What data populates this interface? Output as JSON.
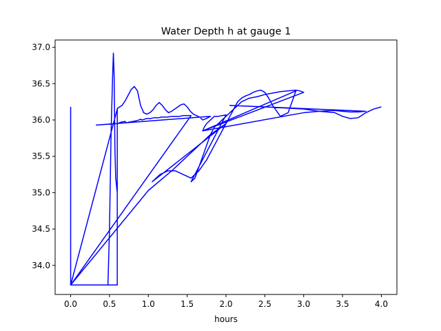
{
  "chart_data": {
    "type": "line",
    "title": "Water Depth h at gauge 1",
    "xlabel": "hours",
    "ylabel": "",
    "xlim": [
      -0.2,
      4.2
    ],
    "ylim": [
      33.6,
      37.1
    ],
    "xticks": [
      "0.0",
      "0.5",
      "1.0",
      "1.5",
      "2.0",
      "2.5",
      "3.0",
      "3.5",
      "4.0"
    ],
    "yticks": [
      "34.0",
      "34.5",
      "35.0",
      "35.5",
      "36.0",
      "36.5",
      "37.0"
    ],
    "grid": false,
    "legend": "none",
    "series": [
      {
        "color": "#0000ff",
        "x": [
          0.0,
          0.0,
          0.05,
          0.12,
          0.2,
          0.28,
          0.35,
          0.42,
          0.48,
          0.5,
          0.52,
          0.54,
          0.55,
          0.56,
          0.57,
          0.58,
          0.6,
          0.6,
          0.0,
          0.0,
          0.6,
          0.6,
          0.6,
          0.62,
          0.66,
          0.7,
          0.74,
          0.78,
          0.82,
          0.86,
          0.9,
          0.94,
          0.98,
          1.02,
          1.06,
          1.1,
          1.14,
          1.18,
          1.22,
          1.26,
          1.3,
          1.34,
          1.38,
          1.42,
          1.46,
          1.5,
          1.54,
          1.58,
          1.62,
          1.66,
          1.7,
          1.75,
          1.8,
          0.33,
          0.6,
          0.65,
          0.7,
          0.72,
          0.75,
          0.8,
          0.85,
          0.88,
          0.9,
          0.92,
          0.95,
          0.98,
          1.0,
          1.03,
          1.07,
          1.1,
          1.13,
          1.17,
          1.22,
          1.25,
          1.3,
          1.35,
          1.4,
          1.45,
          1.5,
          1.55,
          0.0,
          1.0,
          1.3,
          1.6,
          1.8,
          2.0,
          1.05,
          1.15,
          1.25,
          1.35,
          1.45,
          1.55,
          1.65,
          1.75,
          1.8,
          1.85,
          1.9,
          1.95,
          2.0,
          2.05,
          2.1,
          2.15,
          2.2,
          2.25,
          2.3,
          2.35,
          2.4,
          2.45,
          2.5,
          2.55,
          2.6,
          2.7,
          2.8,
          2.9,
          1.7,
          1.72,
          1.75,
          1.8,
          1.85,
          1.9,
          2.0,
          1.55,
          1.6,
          1.65,
          1.7,
          1.75,
          1.8,
          1.85,
          1.9,
          1.95,
          2.0,
          2.05,
          2.1,
          2.15,
          2.2,
          2.3,
          2.4,
          2.5,
          2.6,
          2.7,
          2.8,
          2.9,
          2.95,
          3.0,
          1.7,
          3.0,
          3.2,
          3.4,
          3.5,
          3.6,
          3.7,
          3.8,
          2.05,
          2.5,
          3.0,
          3.2,
          3.4,
          3.5,
          3.6,
          3.7,
          3.8,
          3.9,
          4.0
        ],
        "y": [
          36.18,
          33.73,
          33.73,
          33.73,
          33.73,
          33.73,
          33.73,
          33.73,
          33.73,
          34.5,
          35.8,
          36.6,
          36.92,
          36.6,
          35.6,
          35.2,
          35.0,
          36.15,
          33.73,
          33.73,
          33.73,
          33.74,
          36.16,
          36.17,
          36.2,
          36.26,
          36.34,
          36.42,
          36.46,
          36.4,
          36.2,
          36.1,
          36.08,
          36.1,
          36.14,
          36.2,
          36.24,
          36.2,
          36.14,
          36.1,
          36.12,
          36.15,
          36.18,
          36.21,
          36.22,
          36.18,
          36.12,
          36.08,
          36.06,
          36.04,
          36.0,
          36.02,
          36.05,
          35.93,
          35.95,
          35.97,
          35.98,
          35.96,
          35.97,
          35.98,
          35.99,
          36.0,
          36.01,
          36.0,
          36.01,
          36.02,
          36.02,
          36.02,
          36.03,
          36.03,
          36.03,
          36.04,
          36.04,
          36.04,
          36.05,
          36.05,
          36.05,
          36.06,
          36.06,
          36.06,
          33.73,
          35.03,
          35.3,
          35.6,
          35.8,
          35.95,
          35.15,
          35.25,
          35.3,
          35.3,
          35.25,
          35.2,
          35.3,
          35.45,
          35.55,
          35.65,
          35.75,
          35.85,
          35.95,
          36.05,
          36.15,
          36.25,
          36.3,
          36.33,
          36.35,
          36.38,
          36.4,
          36.41,
          36.38,
          36.3,
          36.2,
          36.05,
          36.1,
          36.4,
          35.85,
          35.9,
          35.95,
          36.0,
          36.05,
          36.05,
          36.07,
          35.15,
          35.2,
          35.35,
          35.5,
          35.65,
          35.8,
          35.9,
          35.95,
          36.0,
          36.05,
          36.1,
          36.15,
          36.2,
          36.25,
          36.3,
          36.32,
          36.35,
          36.37,
          36.39,
          36.4,
          36.41,
          36.4,
          36.38,
          35.85,
          36.1,
          36.12,
          36.13,
          36.12,
          36.11,
          36.11,
          36.12,
          36.2,
          36.18,
          36.15,
          36.12,
          36.1,
          36.05,
          36.02,
          36.03,
          36.1,
          36.15,
          36.18
        ]
      }
    ]
  }
}
